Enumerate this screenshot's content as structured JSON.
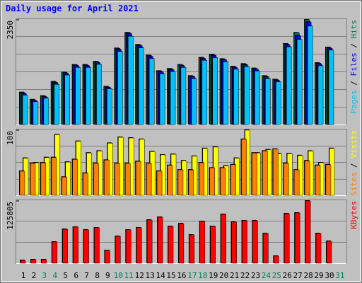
{
  "chart_data": [
    {
      "type": "bar",
      "title": "Daily usage for April 2021",
      "categories": [
        "1",
        "2",
        "3",
        "4",
        "5",
        "6",
        "7",
        "8",
        "9",
        "10",
        "11",
        "12",
        "13",
        "14",
        "15",
        "16",
        "17",
        "18",
        "19",
        "20",
        "21",
        "22",
        "23",
        "24",
        "25",
        "26",
        "27",
        "28",
        "29",
        "30",
        "31"
      ],
      "category_colors": [
        "#000000",
        "#000000",
        "#00805c",
        "#00805c",
        "#000000",
        "#000000",
        "#000000",
        "#000000",
        "#000000",
        "#00805c",
        "#00805c",
        "#000000",
        "#000000",
        "#000000",
        "#000000",
        "#000000",
        "#00805c",
        "#00805c",
        "#000000",
        "#000000",
        "#000000",
        "#000000",
        "#000000",
        "#00805c",
        "#00805c",
        "#000000",
        "#000000",
        "#000000",
        "#000000",
        "#000000",
        "#00805c"
      ],
      "legend_separator": " / ",
      "ylim": [
        0,
        2350
      ],
      "yticks": [
        2350
      ],
      "series": [
        {
          "name": "Hits",
          "color": "#00805c",
          "values": [
            720,
            560,
            640,
            960,
            1170,
            1340,
            1340,
            1410,
            850,
            1710,
            2060,
            1790,
            1550,
            1200,
            1250,
            1340,
            1090,
            1500,
            1570,
            1470,
            1300,
            1360,
            1260,
            1090,
            1010,
            1810,
            2060,
            2350,
            1380,
            1730,
            null
          ]
        },
        {
          "name": "Files",
          "color": "#0000ff",
          "values": [
            700,
            540,
            620,
            940,
            1150,
            1320,
            1320,
            1390,
            830,
            1690,
            2040,
            1770,
            1530,
            1180,
            1230,
            1320,
            1070,
            1480,
            1550,
            1450,
            1280,
            1340,
            1240,
            1070,
            990,
            1790,
            2000,
            2300,
            1360,
            1710,
            null
          ]
        },
        {
          "name": "Pages",
          "color": "#00c0ff",
          "values": [
            660,
            510,
            590,
            900,
            1110,
            1280,
            1280,
            1350,
            800,
            1640,
            1980,
            1720,
            1480,
            1140,
            1190,
            1280,
            1030,
            1440,
            1500,
            1410,
            1240,
            1300,
            1200,
            1030,
            960,
            1740,
            1910,
            2210,
            1320,
            1670,
            null
          ]
        }
      ]
    },
    {
      "type": "bar",
      "ylim": [
        0,
        100
      ],
      "yticks": [
        100
      ],
      "series": [
        {
          "name": "Visits",
          "color": "#ffff00",
          "values": [
            57,
            50,
            58,
            93,
            51,
            83,
            65,
            68,
            80,
            89,
            88,
            86,
            67,
            62,
            63,
            53,
            60,
            72,
            74,
            45,
            57,
            100,
            65,
            70,
            64,
            64,
            61,
            68,
            50,
            72,
            null
          ]
        },
        {
          "name": "Sites",
          "color": "#ff8000",
          "values": [
            37,
            49,
            50,
            58,
            28,
            55,
            34,
            49,
            54,
            49,
            49,
            52,
            49,
            37,
            46,
            39,
            39,
            50,
            42,
            42,
            47,
            86,
            65,
            68,
            71,
            49,
            39,
            53,
            46,
            47,
            null
          ]
        }
      ]
    },
    {
      "type": "bar",
      "ylim": [
        0,
        125805
      ],
      "yticks": [
        125805
      ],
      "series": [
        {
          "name": "KBytes",
          "color": "#ff0000",
          "values": [
            5700,
            7150,
            7150,
            42900,
            68600,
            72900,
            67200,
            71500,
            25700,
            54300,
            67200,
            71500,
            87200,
            92900,
            74300,
            80100,
            57200,
            84400,
            74300,
            98700,
            82900,
            85800,
            85800,
            60000,
            14300,
            100100,
            101500,
            125805,
            60000,
            44300,
            null
          ]
        }
      ]
    }
  ]
}
